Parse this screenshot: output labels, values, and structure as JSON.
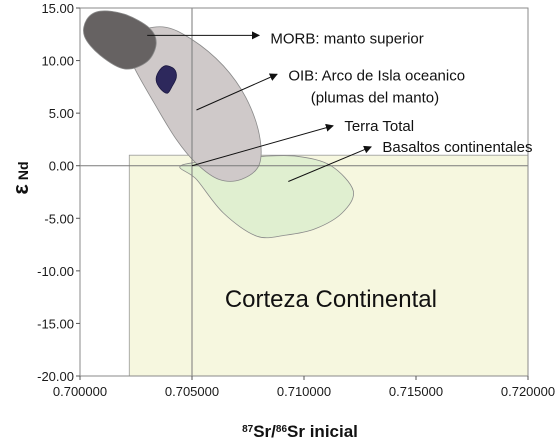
{
  "chart_data": {
    "type": "scatter",
    "x_axis": {
      "min": 0.7,
      "max": 0.72,
      "ticks": [
        0.7,
        0.705,
        0.71,
        0.715,
        0.72
      ],
      "tick_labels": [
        "0.700000",
        "0.705000",
        "0.710000",
        "0.715000",
        "0.720000"
      ],
      "label_sup1": "87",
      "label_mid": "Sr/",
      "label_sup2": "86",
      "label_end": "Sr inicial"
    },
    "y_axis": {
      "min": -20,
      "max": 15,
      "ticks": [
        15,
        10,
        5,
        0,
        -5,
        -10,
        -15,
        -20
      ],
      "tick_labels": [
        "15.00",
        "10.00",
        "5.00",
        "0.00",
        "-5.00",
        "-10.00",
        "-15.00",
        "-20.00"
      ],
      "label_main": "ε",
      "label_sub": "Nd"
    },
    "reference_lines": {
      "x": 0.705,
      "y": 0
    },
    "grid": false,
    "regions": [
      {
        "id": "corteza",
        "label": "Corteza Continental",
        "color": "#f6f7df",
        "rect": {
          "x0": 0.7022,
          "x1": 0.72,
          "y0": -20,
          "y1": 1.0
        }
      },
      {
        "id": "basaltos",
        "label": "Basaltos continentales",
        "color": "#e0efd0",
        "points": [
          [
            0.7045,
            0
          ],
          [
            0.7052,
            -1.3
          ],
          [
            0.7064,
            -4.5
          ],
          [
            0.7079,
            -6.7
          ],
          [
            0.7092,
            -6.6
          ],
          [
            0.7105,
            -6.0
          ],
          [
            0.7117,
            -4.5
          ],
          [
            0.7122,
            -2.4
          ],
          [
            0.7112,
            0
          ],
          [
            0.7097,
            0.9
          ],
          [
            0.7082,
            0.9
          ],
          [
            0.7065,
            0.6
          ]
        ]
      },
      {
        "id": "oib",
        "label": "OIB: Arco de Isla oceanico (plumas del manto)",
        "color": "#cfc9c9",
        "points": [
          [
            0.7023,
            12.5
          ],
          [
            0.7021,
            11.0
          ],
          [
            0.7025,
            9.0
          ],
          [
            0.7033,
            6.0
          ],
          [
            0.7043,
            2.5
          ],
          [
            0.7052,
            0.2
          ],
          [
            0.7062,
            -1.3
          ],
          [
            0.7072,
            -1.3
          ],
          [
            0.708,
            0.1
          ],
          [
            0.708,
            3.0
          ],
          [
            0.7074,
            6.5
          ],
          [
            0.7064,
            9.5
          ],
          [
            0.705,
            12.0
          ],
          [
            0.7037,
            13.2
          ]
        ]
      },
      {
        "id": "morb",
        "label": "MORB: manto superior",
        "color": "#666262",
        "points": [
          [
            0.7009,
            14.7
          ],
          [
            0.702,
            14.4
          ],
          [
            0.7031,
            13.1
          ],
          [
            0.7034,
            11.6
          ],
          [
            0.703,
            9.9
          ],
          [
            0.702,
            9.2
          ],
          [
            0.7009,
            10.5
          ],
          [
            0.7002,
            12.3
          ],
          [
            0.7003,
            13.9
          ]
        ]
      },
      {
        "id": "cluster",
        "label": "",
        "color": "#2d285c",
        "points": [
          [
            0.7035,
            8.9
          ],
          [
            0.7038,
            9.5
          ],
          [
            0.7042,
            9.2
          ],
          [
            0.7043,
            8.4
          ],
          [
            0.7041,
            7.5
          ],
          [
            0.7039,
            6.9
          ],
          [
            0.7036,
            7.3
          ],
          [
            0.7034,
            8.1
          ]
        ]
      }
    ],
    "annotations": [
      {
        "text": "MORB: manto superior",
        "arrow_from": [
          0.703,
          12.4
        ],
        "arrow_to": [
          0.708,
          12.4
        ],
        "text_at": [
          0.7085,
          12.1
        ]
      },
      {
        "text": "OIB: Arco de Isla oceanico",
        "arrow_from": [
          0.7052,
          5.3
        ],
        "arrow_to": [
          0.7088,
          8.7
        ],
        "text_at": [
          0.7093,
          8.6
        ]
      },
      {
        "text": "(plumas del manto)",
        "text_at": [
          0.7103,
          6.5
        ]
      },
      {
        "text": "Terra Total",
        "arrow_from": [
          0.705,
          0
        ],
        "arrow_to": [
          0.7113,
          3.8
        ],
        "text_at": [
          0.7118,
          3.8
        ]
      },
      {
        "text": "Basaltos continentales",
        "arrow_from": [
          0.7093,
          -1.5
        ],
        "arrow_to": [
          0.713,
          1.8
        ],
        "text_at": [
          0.7135,
          1.8
        ]
      }
    ],
    "big_label": {
      "text": "Corteza Continental",
      "at": [
        0.7112,
        -12.7
      ]
    }
  }
}
